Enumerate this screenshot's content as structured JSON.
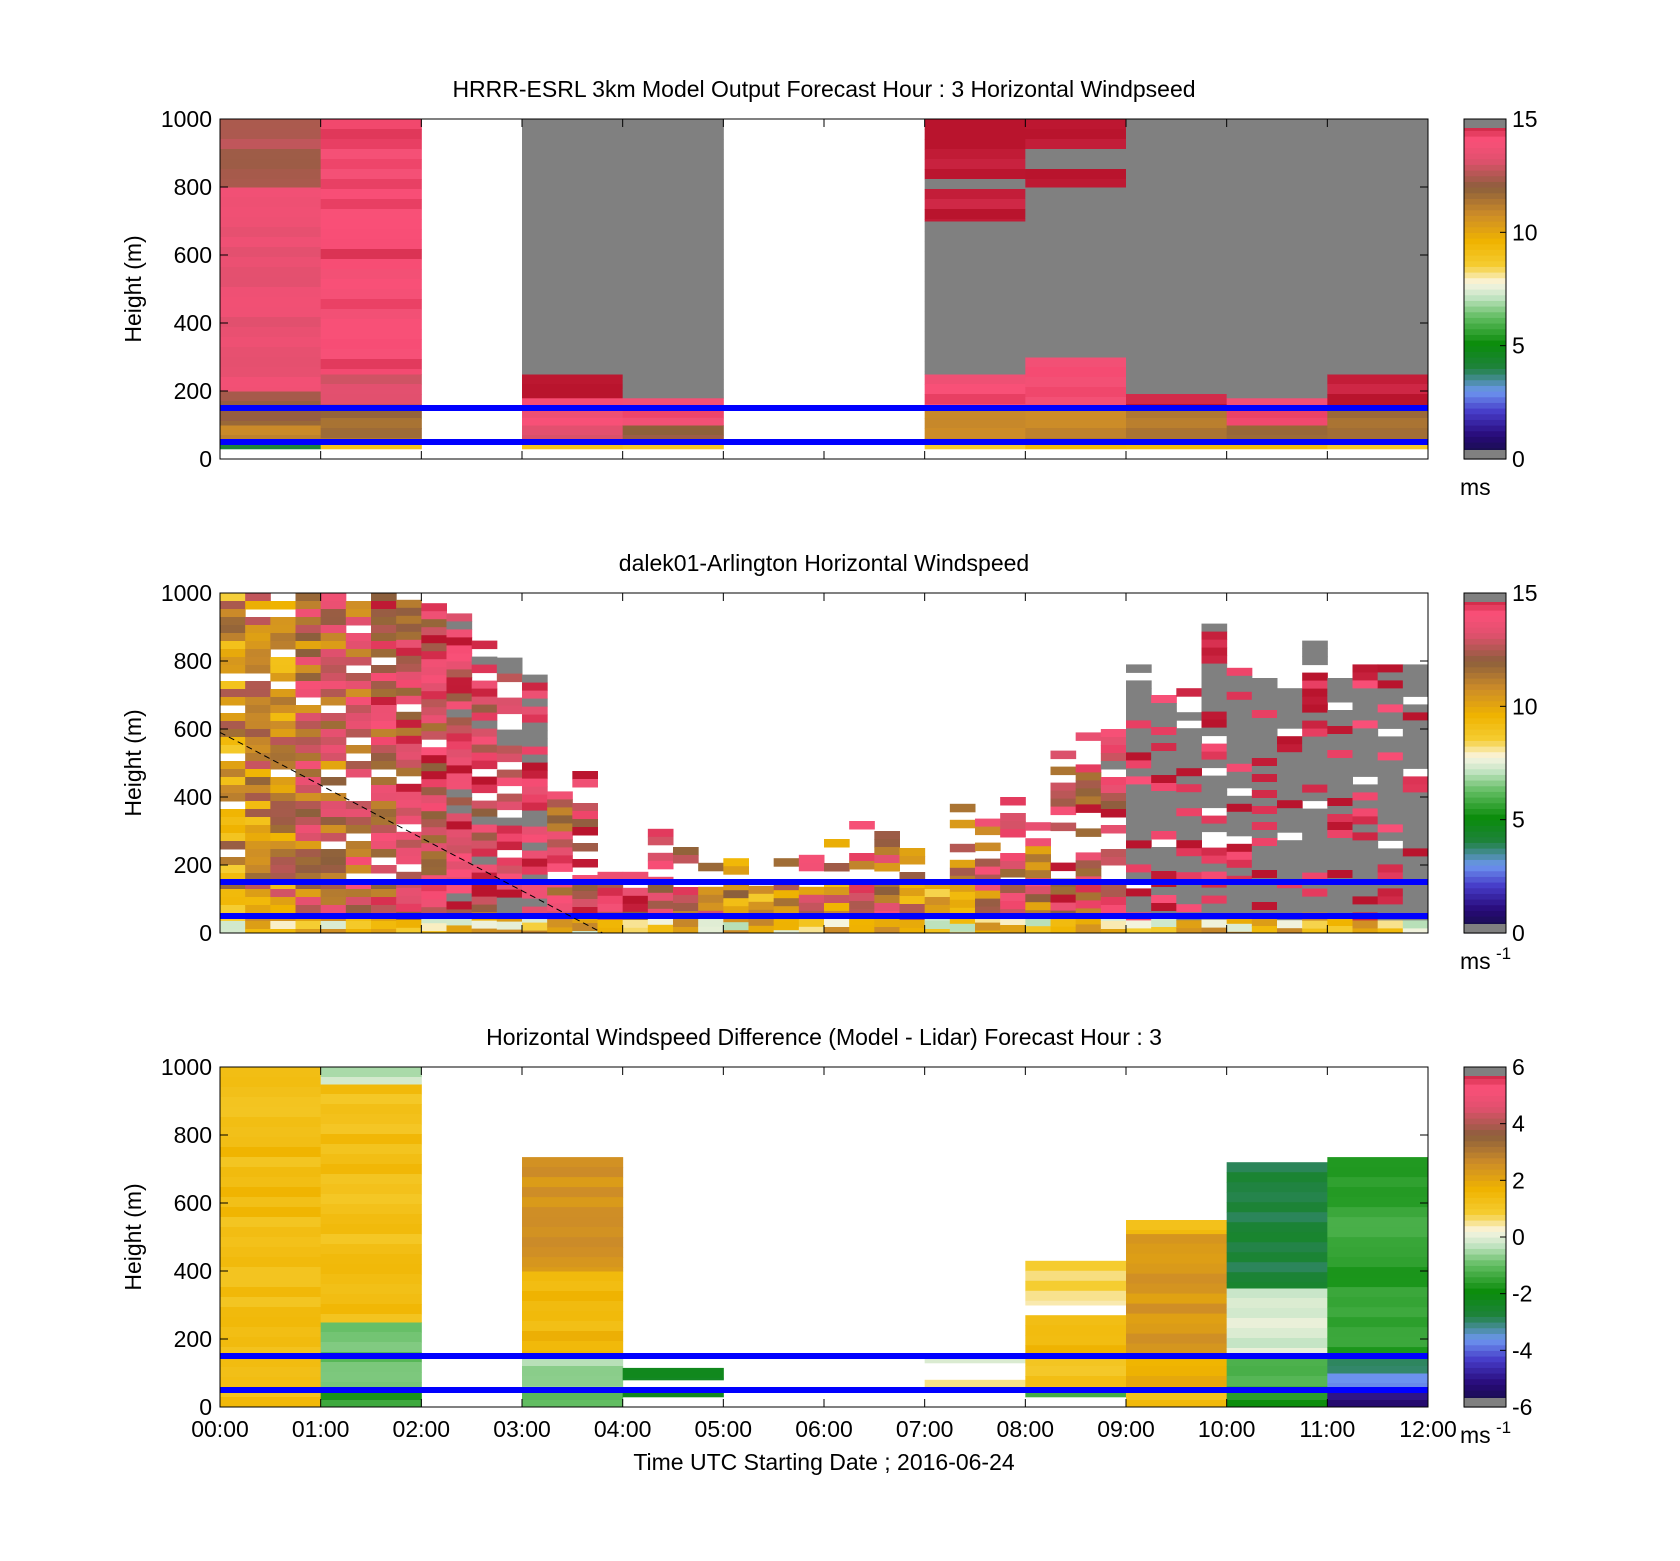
{
  "chart_data": [
    {
      "type": "heatmap",
      "title": "HRRR-ESRL 3km Model Output   Forecast Hour : 3 Horizontal Windpseed",
      "xlabel": "",
      "ylabel": "Height (m)",
      "xlim": [
        0,
        12
      ],
      "ylim": [
        0,
        1000
      ],
      "yticks": [
        0,
        200,
        400,
        600,
        800,
        1000
      ],
      "colorbar": {
        "ticks": [
          0,
          5,
          10,
          15
        ],
        "range": [
          0,
          15
        ],
        "unit": "ms",
        "unit_sup": ""
      },
      "reference_lines": [
        50,
        150
      ],
      "cells": [
        {
          "t0": 0,
          "t1": 1,
          "z0": 30,
          "z1": 50,
          "v": 4
        },
        {
          "t0": 0,
          "t1": 1,
          "z0": 50,
          "z1": 100,
          "v": 11
        },
        {
          "t0": 0,
          "t1": 1,
          "z0": 100,
          "z1": 200,
          "v": 12
        },
        {
          "t0": 0,
          "t1": 1,
          "z0": 200,
          "z1": 800,
          "v": 13.5
        },
        {
          "t0": 0,
          "t1": 1,
          "z0": 800,
          "z1": 1000,
          "v": 12.5
        },
        {
          "t0": 1,
          "t1": 2,
          "z0": 30,
          "z1": 50,
          "v": 9
        },
        {
          "t0": 1,
          "t1": 2,
          "z0": 50,
          "z1": 150,
          "v": 11.5
        },
        {
          "t0": 1,
          "t1": 2,
          "z0": 150,
          "z1": 250,
          "v": 13
        },
        {
          "t0": 1,
          "t1": 2,
          "z0": 250,
          "z1": 1000,
          "v": 14.2
        },
        {
          "t0": 3,
          "t1": 4,
          "z0": 30,
          "z1": 50,
          "v": 9
        },
        {
          "t0": 3,
          "t1": 4,
          "z0": 50,
          "z1": 100,
          "v": 13
        },
        {
          "t0": 3,
          "t1": 4,
          "z0": 100,
          "z1": 180,
          "v": 14
        },
        {
          "t0": 3,
          "t1": 4,
          "z0": 180,
          "z1": 250,
          "v": 15
        },
        {
          "t0": 3,
          "t1": 4,
          "z0": 250,
          "z1": 1000,
          "v": 16
        },
        {
          "t0": 4,
          "t1": 5,
          "z0": 30,
          "z1": 50,
          "v": 9
        },
        {
          "t0": 4,
          "t1": 5,
          "z0": 50,
          "z1": 100,
          "v": 12
        },
        {
          "t0": 4,
          "t1": 5,
          "z0": 100,
          "z1": 180,
          "v": 14
        },
        {
          "t0": 4,
          "t1": 5,
          "z0": 180,
          "z1": 1000,
          "v": 16
        },
        {
          "t0": 7,
          "t1": 8,
          "z0": 30,
          "z1": 50,
          "v": 8.5
        },
        {
          "t0": 7,
          "t1": 8,
          "z0": 50,
          "z1": 150,
          "v": 11
        },
        {
          "t0": 7,
          "t1": 8,
          "z0": 150,
          "z1": 250,
          "v": 14
        },
        {
          "t0": 7,
          "t1": 8,
          "z0": 250,
          "z1": 700,
          "v": 16
        },
        {
          "t0": 7,
          "t1": 8,
          "z0": 700,
          "z1": 1000,
          "v": 15
        },
        {
          "t0": 8,
          "t1": 9,
          "z0": 30,
          "z1": 50,
          "v": 9
        },
        {
          "t0": 8,
          "t1": 9,
          "z0": 50,
          "z1": 150,
          "v": 11
        },
        {
          "t0": 8,
          "t1": 9,
          "z0": 150,
          "z1": 300,
          "v": 14
        },
        {
          "t0": 8,
          "t1": 9,
          "z0": 300,
          "z1": 800,
          "v": 16
        },
        {
          "t0": 8,
          "t1": 9,
          "z0": 800,
          "z1": 1000,
          "v": 15
        },
        {
          "t0": 9,
          "t1": 10,
          "z0": 30,
          "z1": 50,
          "v": 9
        },
        {
          "t0": 9,
          "t1": 10,
          "z0": 50,
          "z1": 150,
          "v": 11.5
        },
        {
          "t0": 9,
          "t1": 10,
          "z0": 150,
          "z1": 250,
          "v": 15
        },
        {
          "t0": 9,
          "t1": 10,
          "z0": 250,
          "z1": 1000,
          "v": 16
        },
        {
          "t0": 10,
          "t1": 11,
          "z0": 30,
          "z1": 50,
          "v": 9
        },
        {
          "t0": 10,
          "t1": 11,
          "z0": 50,
          "z1": 100,
          "v": 12
        },
        {
          "t0": 10,
          "t1": 11,
          "z0": 100,
          "z1": 180,
          "v": 14
        },
        {
          "t0": 10,
          "t1": 11,
          "z0": 180,
          "z1": 1000,
          "v": 16
        },
        {
          "t0": 11,
          "t1": 12,
          "z0": 30,
          "z1": 50,
          "v": 9
        },
        {
          "t0": 11,
          "t1": 12,
          "z0": 50,
          "z1": 150,
          "v": 11.5
        },
        {
          "t0": 11,
          "t1": 12,
          "z0": 150,
          "z1": 250,
          "v": 15
        },
        {
          "t0": 11,
          "t1": 12,
          "z0": 250,
          "z1": 1000,
          "v": 16
        }
      ]
    },
    {
      "type": "heatmap",
      "title": "dalek01-Arlington  Horizontal Windspeed",
      "xlabel": "",
      "ylabel": "Height (m)",
      "xlim": [
        0,
        12
      ],
      "ylim": [
        0,
        1000
      ],
      "yticks": [
        0,
        200,
        400,
        600,
        800,
        1000
      ],
      "colorbar": {
        "ticks": [
          0,
          5,
          10,
          15
        ],
        "range": [
          0,
          15
        ],
        "unit": "ms",
        "unit_sup": "-1"
      },
      "reference_lines": [
        50,
        150
      ],
      "dashed_line": [
        [
          0,
          590
        ],
        [
          3.8,
          0
        ]
      ],
      "columns": [
        {
          "t": 0.0,
          "top": 1000,
          "v": 10.5
        },
        {
          "t": 0.25,
          "top": 1000,
          "v": 11
        },
        {
          "t": 0.5,
          "top": 1000,
          "v": 11
        },
        {
          "t": 0.75,
          "top": 1000,
          "v": 12
        },
        {
          "t": 1.0,
          "top": 1000,
          "v": 12
        },
        {
          "t": 1.25,
          "top": 1000,
          "v": 12.5
        },
        {
          "t": 1.5,
          "top": 1000,
          "v": 13
        },
        {
          "t": 1.75,
          "top": 980,
          "v": 13
        },
        {
          "t": 2.0,
          "top": 970,
          "v": 13.5
        },
        {
          "t": 2.25,
          "top": 940,
          "v": 14
        },
        {
          "t": 2.5,
          "top": 860,
          "v": 14
        },
        {
          "t": 2.75,
          "top": 810,
          "v": 14.5
        },
        {
          "t": 3.0,
          "top": 760,
          "v": 15
        },
        {
          "t": 3.25,
          "top": 440,
          "v": 13
        },
        {
          "t": 3.5,
          "top": 500,
          "v": 14
        },
        {
          "t": 3.75,
          "top": 180,
          "v": 13
        },
        {
          "t": 4.0,
          "top": 180,
          "v": 14
        },
        {
          "t": 4.25,
          "top": 330,
          "v": 14
        },
        {
          "t": 4.5,
          "top": 300,
          "v": 13
        },
        {
          "t": 4.75,
          "top": 230,
          "v": 12
        },
        {
          "t": 5.0,
          "top": 220,
          "v": 11
        },
        {
          "t": 5.25,
          "top": 280,
          "v": 10
        },
        {
          "t": 5.5,
          "top": 220,
          "v": 11
        },
        {
          "t": 5.75,
          "top": 230,
          "v": 12
        },
        {
          "t": 6.0,
          "top": 300,
          "v": 11
        },
        {
          "t": 6.25,
          "top": 400,
          "v": 13
        },
        {
          "t": 6.5,
          "top": 300,
          "v": 12
        },
        {
          "t": 6.75,
          "top": 250,
          "v": 11
        },
        {
          "t": 7.0,
          "top": 200,
          "v": 10
        },
        {
          "t": 7.25,
          "top": 380,
          "v": 11
        },
        {
          "t": 7.5,
          "top": 360,
          "v": 12
        },
        {
          "t": 7.75,
          "top": 400,
          "v": 13
        },
        {
          "t": 8.0,
          "top": 420,
          "v": 12
        },
        {
          "t": 8.25,
          "top": 560,
          "v": 13
        },
        {
          "t": 8.5,
          "top": 590,
          "v": 13
        },
        {
          "t": 8.75,
          "top": 600,
          "v": 14
        },
        {
          "t": 9.0,
          "top": 790,
          "v": 16
        },
        {
          "t": 9.25,
          "top": 700,
          "v": 16
        },
        {
          "t": 9.5,
          "top": 720,
          "v": 16
        },
        {
          "t": 9.75,
          "top": 910,
          "v": 16
        },
        {
          "t": 10.0,
          "top": 780,
          "v": 16
        },
        {
          "t": 10.25,
          "top": 750,
          "v": 16
        },
        {
          "t": 10.5,
          "top": 720,
          "v": 16
        },
        {
          "t": 10.75,
          "top": 860,
          "v": 16
        },
        {
          "t": 11.0,
          "top": 750,
          "v": 16
        },
        {
          "t": 11.25,
          "top": 790,
          "v": 16
        },
        {
          "t": 11.5,
          "top": 790,
          "v": 16
        },
        {
          "t": 11.75,
          "top": 790,
          "v": 16
        }
      ]
    },
    {
      "type": "heatmap",
      "title": "Horizontal Windspeed Difference (Model - Lidar) Forecast Hour : 3",
      "xlabel": "Time UTC  Starting Date ; 2016-06-24",
      "ylabel": "Height (m)",
      "xlim": [
        0,
        12
      ],
      "ylim": [
        0,
        1000
      ],
      "yticks": [
        0,
        200,
        400,
        600,
        800,
        1000
      ],
      "xticks": [
        "00:00",
        "01:00",
        "02:00",
        "03:00",
        "04:00",
        "05:00",
        "06:00",
        "07:00",
        "08:00",
        "09:00",
        "10:00",
        "11:00",
        "12:00"
      ],
      "colorbar": {
        "ticks": [
          -6,
          -4,
          -2,
          0,
          2,
          4,
          6
        ],
        "range": [
          -6,
          6
        ],
        "unit": "ms",
        "unit_sup": "-1"
      },
      "reference_lines": [
        50,
        150
      ],
      "cells": [
        {
          "t0": 0,
          "t1": 1,
          "z0": 0,
          "z1": 1000,
          "v": 1.4
        },
        {
          "t0": 1,
          "t1": 2,
          "z0": 0,
          "z1": 50,
          "v": -1.5
        },
        {
          "t0": 1,
          "t1": 2,
          "z0": 50,
          "z1": 250,
          "v": -0.8
        },
        {
          "t0": 1,
          "t1": 2,
          "z0": 250,
          "z1": 950,
          "v": 1.3
        },
        {
          "t0": 1,
          "t1": 2,
          "z0": 950,
          "z1": 1000,
          "v": -0.4
        },
        {
          "t0": 3,
          "t1": 4,
          "z0": 0,
          "z1": 50,
          "v": -1.2
        },
        {
          "t0": 3,
          "t1": 4,
          "z0": 50,
          "z1": 150,
          "v": -0.6
        },
        {
          "t0": 3,
          "t1": 4,
          "z0": 150,
          "z1": 400,
          "v": 1.5
        },
        {
          "t0": 3,
          "t1": 4,
          "z0": 400,
          "z1": 735,
          "v": 2.5
        },
        {
          "t0": 4,
          "t1": 5,
          "z0": 30,
          "z1": 50,
          "v": -2.2
        },
        {
          "t0": 4,
          "t1": 5,
          "z0": 80,
          "z1": 115,
          "v": -2.4
        },
        {
          "t0": 7,
          "t1": 8,
          "z0": 50,
          "z1": 80,
          "v": 0.8
        },
        {
          "t0": 7,
          "t1": 8,
          "z0": 130,
          "z1": 150,
          "v": -0.3
        },
        {
          "t0": 8,
          "t1": 9,
          "z0": 30,
          "z1": 50,
          "v": -1.5
        },
        {
          "t0": 8,
          "t1": 9,
          "z0": 50,
          "z1": 150,
          "v": 1.2
        },
        {
          "t0": 8,
          "t1": 9,
          "z0": 150,
          "z1": 270,
          "v": 1.6
        },
        {
          "t0": 8,
          "t1": 9,
          "z0": 300,
          "z1": 430,
          "v": 0.6
        },
        {
          "t0": 9,
          "t1": 10,
          "z0": 0,
          "z1": 50,
          "v": 1.4
        },
        {
          "t0": 9,
          "t1": 10,
          "z0": 50,
          "z1": 150,
          "v": 1.8
        },
        {
          "t0": 9,
          "t1": 10,
          "z0": 150,
          "z1": 510,
          "v": 2.4
        },
        {
          "t0": 9,
          "t1": 10,
          "z0": 510,
          "z1": 550,
          "v": 1.2
        },
        {
          "t0": 10,
          "t1": 11,
          "z0": 0,
          "z1": 50,
          "v": -1.6
        },
        {
          "t0": 10,
          "t1": 11,
          "z0": 50,
          "z1": 150,
          "v": -1.2
        },
        {
          "t0": 10,
          "t1": 11,
          "z0": 150,
          "z1": 350,
          "v": -0.2
        },
        {
          "t0": 10,
          "t1": 11,
          "z0": 350,
          "z1": 720,
          "v": -2.8
        },
        {
          "t0": 11,
          "t1": 12,
          "z0": 0,
          "z1": 50,
          "v": -5.0
        },
        {
          "t0": 11,
          "t1": 12,
          "z0": 50,
          "z1": 100,
          "v": -3.6
        },
        {
          "t0": 11,
          "t1": 12,
          "z0": 100,
          "z1": 150,
          "v": -2.8
        },
        {
          "t0": 11,
          "t1": 12,
          "z0": 150,
          "z1": 735,
          "v": -1.5
        }
      ]
    }
  ]
}
